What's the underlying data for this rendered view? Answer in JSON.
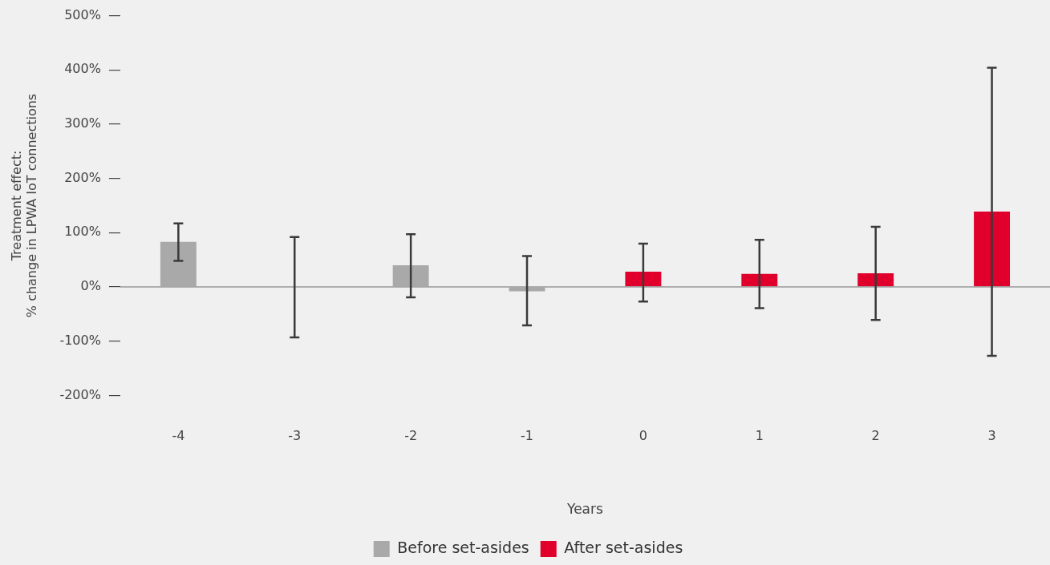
{
  "chart_data": {
    "type": "bar",
    "xlabel": "Years",
    "ylabel": "Treatment effect:\n% change in LPWA IoT connections",
    "categories": [
      "-4",
      "-3",
      "-2",
      "-1",
      "0",
      "1",
      "2",
      "3"
    ],
    "series": [
      {
        "name": "Before set-asides",
        "color": "#a9a9a9",
        "values": [
          83,
          -1,
          40,
          -8,
          null,
          null,
          null,
          null
        ],
        "errors": [
          [
            48,
            117
          ],
          [
            -93,
            92
          ],
          [
            -19,
            97
          ],
          [
            -71,
            57
          ],
          null,
          null,
          null,
          null
        ]
      },
      {
        "name": "After set-asides",
        "color": "#e0002b",
        "values": [
          null,
          null,
          null,
          null,
          28,
          24,
          25,
          139
        ],
        "errors": [
          null,
          null,
          null,
          null,
          [
            -27,
            80
          ],
          [
            -39,
            87
          ],
          [
            -61,
            111
          ],
          [
            -127,
            404
          ]
        ]
      }
    ],
    "ylim": [
      -200,
      500
    ],
    "yticks": [
      {
        "value": -200,
        "label": "-200%"
      },
      {
        "value": -100,
        "label": "-100%"
      },
      {
        "value": 0,
        "label": "0%"
      },
      {
        "value": 100,
        "label": "100%"
      },
      {
        "value": 200,
        "label": "200%"
      },
      {
        "value": 300,
        "label": "300%"
      },
      {
        "value": 400,
        "label": "400%"
      },
      {
        "value": 500,
        "label": "500%"
      }
    ],
    "ref_lines": [
      {
        "axis": "y",
        "value": 0,
        "color": "#999999"
      }
    ],
    "grid": false,
    "legend": "bottom"
  }
}
